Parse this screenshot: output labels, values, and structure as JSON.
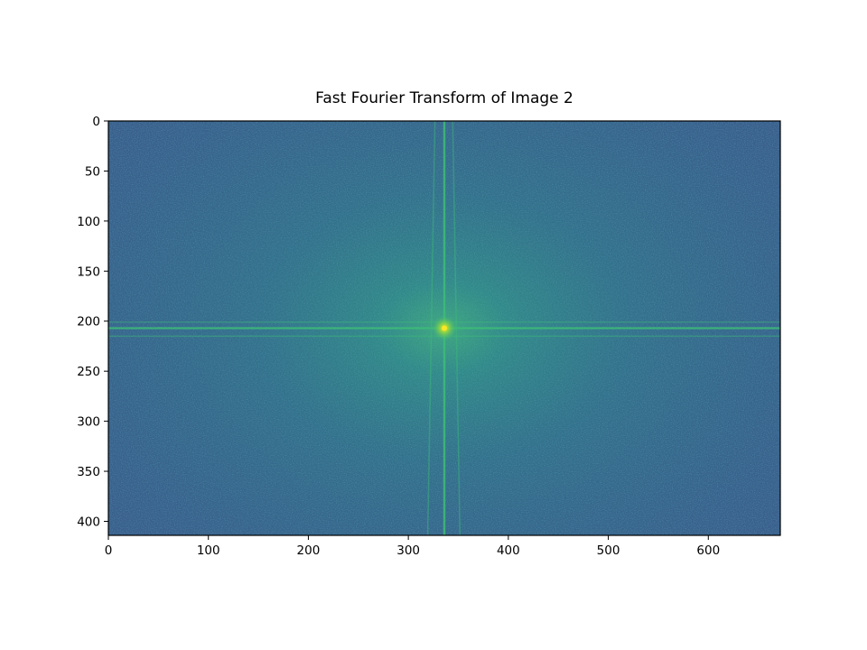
{
  "chart_data": {
    "type": "heatmap",
    "title": "Fast Fourier Transform of Image 2",
    "xlabel": "",
    "ylabel": "",
    "image_size": {
      "width": 672,
      "height": 414
    },
    "xlim": [
      0,
      672
    ],
    "ylim": [
      414,
      0
    ],
    "x_ticks": [
      0,
      100,
      200,
      300,
      400,
      500,
      600
    ],
    "y_ticks": [
      0,
      50,
      100,
      150,
      200,
      250,
      300,
      350,
      400
    ],
    "colormap": "viridis",
    "center_peak": {
      "x": 336,
      "y": 207
    },
    "features": {
      "horizontal_lines_y": [
        201,
        207,
        215
      ],
      "vertical_lines_x": [
        323,
        336,
        348
      ]
    },
    "colors": {
      "background": "#3a5f8c",
      "mid": "#2a8c8c",
      "bright": "#3dbd77",
      "peak": "#fde725"
    },
    "grid": false
  }
}
